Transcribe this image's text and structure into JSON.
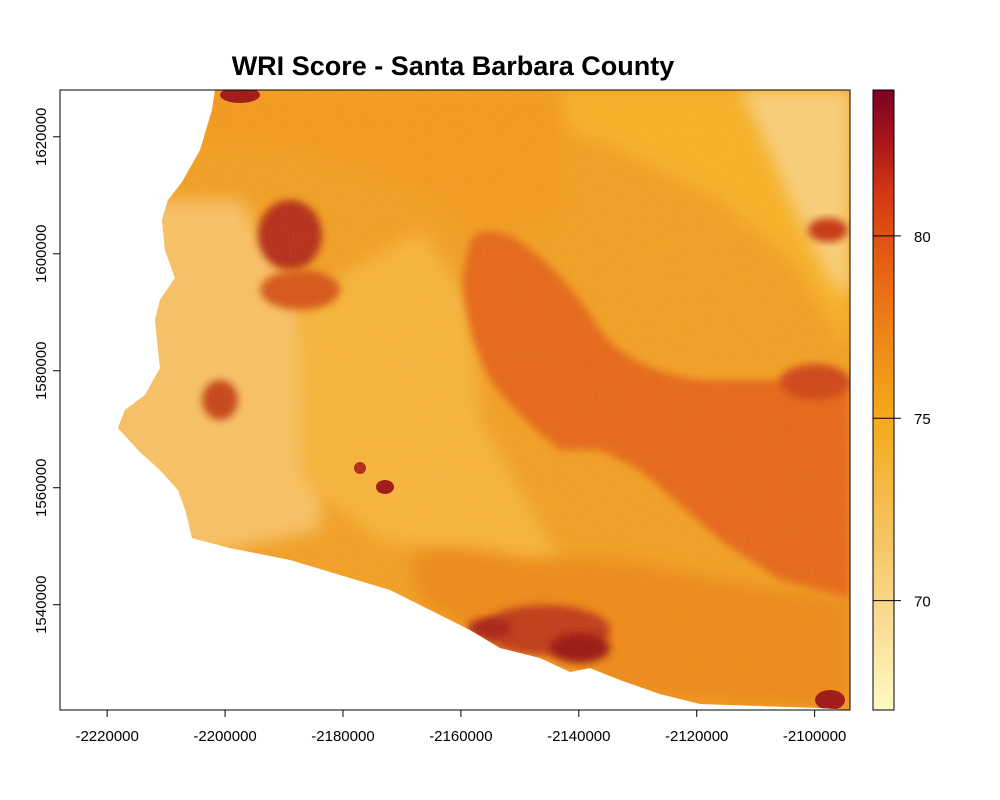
{
  "title": "WRI Score - Santa Barbara County",
  "colors": {
    "land_low": "#f4c877",
    "land_mid": "#f3a322",
    "land_high": "#e4651a",
    "land_peak": "#b01f16",
    "ocean": "#ffffff"
  },
  "chart_data": {
    "type": "heatmap",
    "title": "WRI Score - Santa Barbara County",
    "xlabel": "",
    "ylabel": "",
    "xlim": [
      -2228000,
      -2094000
    ],
    "ylim": [
      1522000,
      1628000
    ],
    "x_ticks": [
      -2220000,
      -2200000,
      -2180000,
      -2160000,
      -2140000,
      -2120000,
      -2100000
    ],
    "x_tick_labels": [
      "-2220000",
      "-2200000",
      "-2180000",
      "-2160000",
      "-2140000",
      "-2120000",
      "-2100000"
    ],
    "y_ticks": [
      1540000,
      1560000,
      1580000,
      1600000,
      1620000
    ],
    "y_tick_labels": [
      "1540000",
      "1560000",
      "1580000",
      "1600000",
      "1620000"
    ],
    "legend": {
      "position": "right",
      "range": [
        67,
        84
      ],
      "ticks": [
        70,
        75,
        80
      ],
      "tick_labels": [
        "70",
        "75",
        "80"
      ],
      "palette": [
        "#fffbc4",
        "#fbe09b",
        "#f6c565",
        "#f4aa1a",
        "#ef8616",
        "#e75f14",
        "#d33a13",
        "#a8141a",
        "#7c0125"
      ]
    }
  }
}
